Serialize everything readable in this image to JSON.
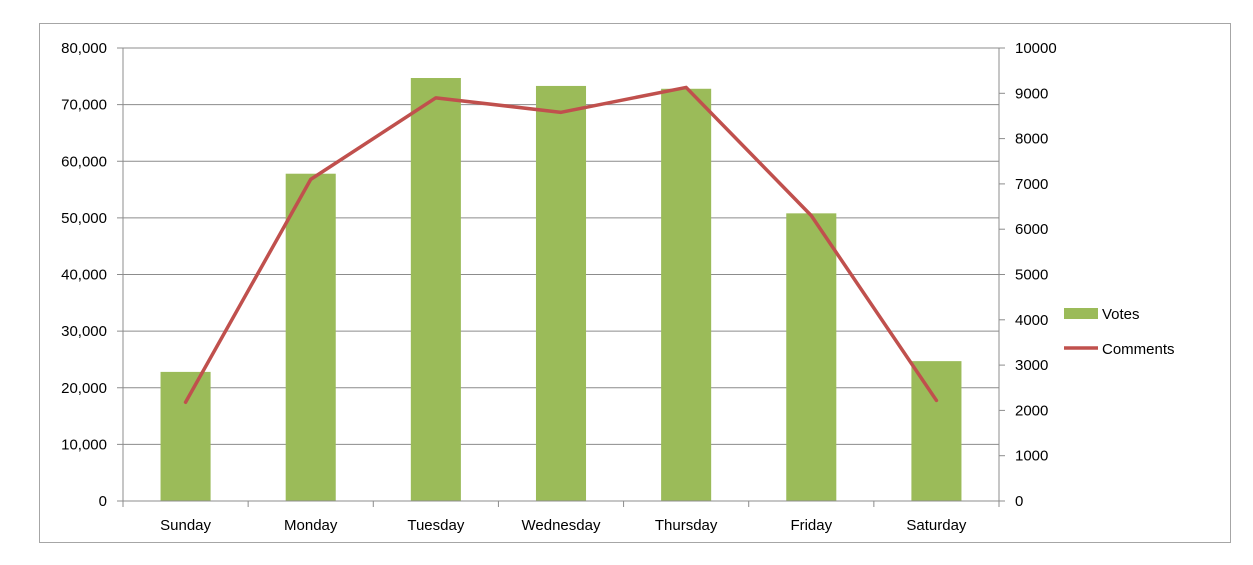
{
  "chart_data": {
    "type": "bar",
    "categories": [
      "Sunday",
      "Monday",
      "Tuesday",
      "Wednesday",
      "Thursday",
      "Friday",
      "Saturday"
    ],
    "series": [
      {
        "name": "Votes",
        "type": "bar",
        "axis": "left",
        "color": "#9bbb59",
        "values": [
          22800,
          57800,
          74700,
          73300,
          72800,
          50800,
          24700
        ]
      },
      {
        "name": "Comments",
        "type": "line",
        "axis": "right",
        "color": "#c0504d",
        "values": [
          2180,
          7100,
          8900,
          8580,
          9130,
          6300,
          2220
        ]
      }
    ],
    "y_left": {
      "ylim": [
        0,
        80000
      ],
      "ticks": [
        "0",
        "10,000",
        "20,000",
        "30,000",
        "40,000",
        "50,000",
        "60,000",
        "70,000",
        "80,000"
      ]
    },
    "y_right": {
      "ylim": [
        0,
        10000
      ],
      "ticks": [
        "0",
        "1000",
        "2000",
        "3000",
        "4000",
        "5000",
        "6000",
        "7000",
        "8000",
        "9000",
        "10000"
      ]
    },
    "title": "",
    "xlabel": "",
    "ylabel": "",
    "grid": true,
    "legend": {
      "position": "right",
      "entries": [
        "Votes",
        "Comments"
      ]
    },
    "colors": {
      "gridline": "#8c8c8c",
      "axis": "#8c8c8c",
      "frame": "#a6a6a6"
    }
  }
}
